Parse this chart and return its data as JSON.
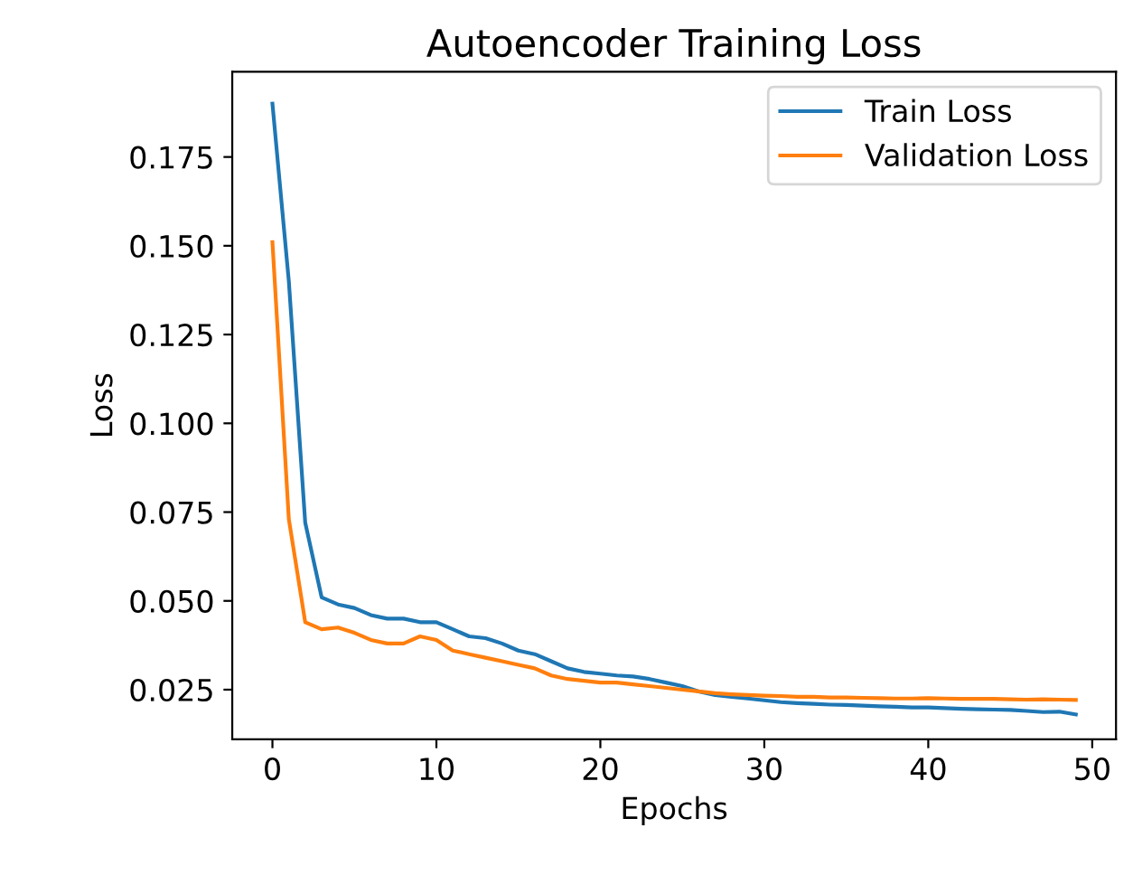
{
  "chart_data": {
    "type": "line",
    "title": "Autoencoder Training Loss",
    "xlabel": "Epochs",
    "ylabel": "Loss",
    "x": [
      0,
      1,
      2,
      3,
      4,
      5,
      6,
      7,
      8,
      9,
      10,
      11,
      12,
      13,
      14,
      15,
      16,
      17,
      18,
      19,
      20,
      21,
      22,
      23,
      24,
      25,
      26,
      27,
      28,
      29,
      30,
      31,
      32,
      33,
      34,
      35,
      36,
      37,
      38,
      39,
      40,
      41,
      42,
      43,
      44,
      45,
      46,
      47,
      48,
      49
    ],
    "series": [
      {
        "name": "Train Loss",
        "color": "#1f77b4",
        "values": [
          0.19,
          0.14,
          0.072,
          0.051,
          0.049,
          0.048,
          0.046,
          0.045,
          0.045,
          0.044,
          0.044,
          0.042,
          0.04,
          0.0395,
          0.038,
          0.036,
          0.035,
          0.033,
          0.031,
          0.03,
          0.0295,
          0.029,
          0.0287,
          0.028,
          0.027,
          0.026,
          0.0245,
          0.0235,
          0.023,
          0.0225,
          0.022,
          0.0215,
          0.0212,
          0.021,
          0.0208,
          0.0207,
          0.0205,
          0.0203,
          0.0202,
          0.02,
          0.02,
          0.0198,
          0.0196,
          0.0195,
          0.0194,
          0.0193,
          0.019,
          0.0187,
          0.0188,
          0.018
        ]
      },
      {
        "name": "Validation Loss",
        "color": "#ff7f0e",
        "values": [
          0.151,
          0.073,
          0.044,
          0.042,
          0.0425,
          0.041,
          0.039,
          0.038,
          0.038,
          0.04,
          0.039,
          0.036,
          0.035,
          0.034,
          0.033,
          0.032,
          0.031,
          0.029,
          0.028,
          0.0275,
          0.027,
          0.027,
          0.0265,
          0.026,
          0.0255,
          0.025,
          0.0245,
          0.024,
          0.0237,
          0.0235,
          0.0233,
          0.0232,
          0.023,
          0.023,
          0.0228,
          0.0228,
          0.0227,
          0.0226,
          0.0225,
          0.0225,
          0.0226,
          0.0225,
          0.0224,
          0.0224,
          0.0224,
          0.0223,
          0.0222,
          0.0223,
          0.0222,
          0.0221
        ]
      }
    ],
    "xlim": [
      -2.45,
      51.45
    ],
    "xticks": [
      0,
      10,
      20,
      30,
      40,
      50
    ],
    "ylim": [
      0.011,
      0.199
    ],
    "yticks": [
      {
        "value": 0.025,
        "label": "0.025"
      },
      {
        "value": 0.05,
        "label": "0.050"
      },
      {
        "value": 0.075,
        "label": "0.075"
      },
      {
        "value": 0.1,
        "label": "0.100"
      },
      {
        "value": 0.125,
        "label": "0.125"
      },
      {
        "value": 0.15,
        "label": "0.150"
      },
      {
        "value": 0.175,
        "label": "0.175"
      }
    ],
    "grid": false,
    "legend": "top right",
    "marker": "none",
    "line_style": "solid"
  }
}
